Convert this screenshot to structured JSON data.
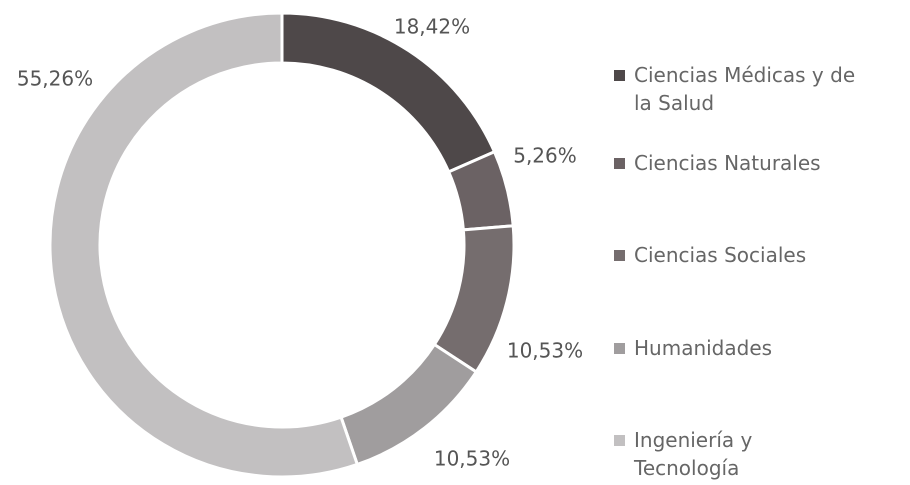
{
  "chart_data": {
    "type": "donut",
    "categories": [
      "Ciencias Médicas y de la Salud",
      "Ciencias Naturales",
      "Ciencias Sociales",
      "Humanidades",
      "Ingeniería y Tecnología"
    ],
    "values": [
      18.42,
      5.26,
      10.53,
      10.53,
      55.26
    ],
    "value_labels": [
      "18,42%",
      "5,26%",
      "10,53%",
      "10,53%",
      "55,26%"
    ],
    "colors": [
      "#4e4849",
      "#6b6264",
      "#756d6e",
      "#a09d9e",
      "#c2c0c1"
    ]
  }
}
